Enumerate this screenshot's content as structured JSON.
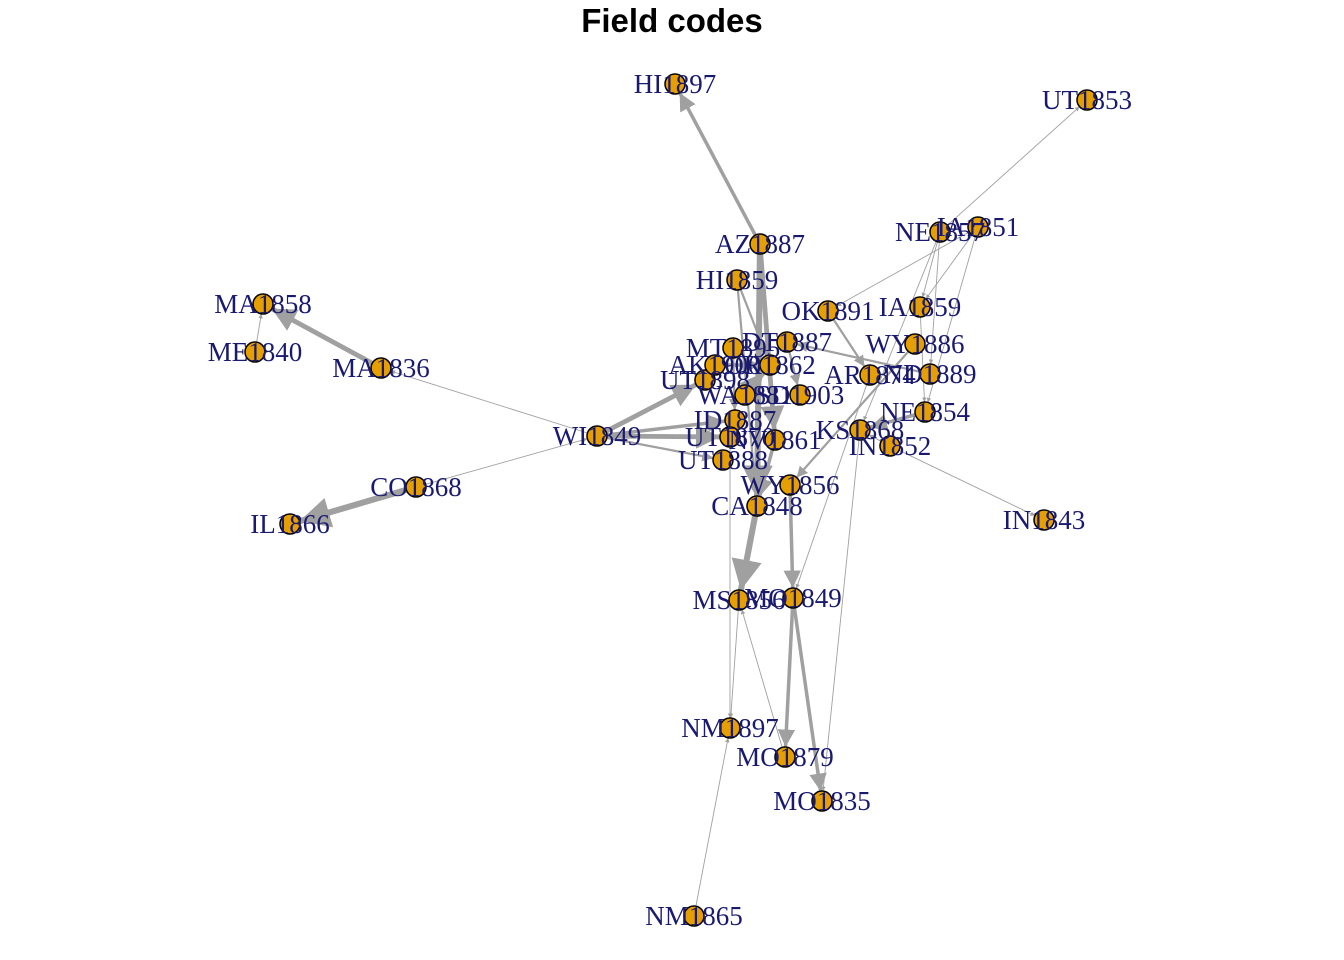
{
  "title": "Field codes",
  "colors": {
    "node_fill": "#E69F00",
    "node_stroke": "#000000",
    "edge": "#A0A0A0",
    "label": "#191970"
  },
  "nodes": [
    {
      "id": "HI1897",
      "label": "HI1897"
    },
    {
      "id": "UT1853",
      "label": "UT1853"
    },
    {
      "id": "NE1857",
      "label": "NE1857"
    },
    {
      "id": "IA1851",
      "label": "IA1851"
    },
    {
      "id": "AZ1887",
      "label": "AZ1887"
    },
    {
      "id": "HI1859",
      "label": "HI1859"
    },
    {
      "id": "MA1858",
      "label": "MA1858"
    },
    {
      "id": "OK1891",
      "label": "OK1891"
    },
    {
      "id": "IA1859",
      "label": "IA1859"
    },
    {
      "id": "ME1840",
      "label": "ME1840"
    },
    {
      "id": "MA1836",
      "label": "MA1836"
    },
    {
      "id": "WY1886",
      "label": "WY1886"
    },
    {
      "id": "DT1887",
      "label": "DT1887"
    },
    {
      "id": "MT1895",
      "label": "MT1895"
    },
    {
      "id": "ND1889",
      "label": "ND1889"
    },
    {
      "id": "WI1849",
      "label": "WI1849"
    },
    {
      "id": "NE1854",
      "label": "NE1854"
    },
    {
      "id": "IN1852",
      "label": "IN1852"
    },
    {
      "id": "CO1868",
      "label": "CO1868"
    },
    {
      "id": "IL1866",
      "label": "IL1866"
    },
    {
      "id": "WY1856",
      "label": "WY1856"
    },
    {
      "id": "CA1848",
      "label": "CA1848"
    },
    {
      "id": "IN1843",
      "label": "IN1843"
    },
    {
      "id": "MS1856",
      "label": "MS1856"
    },
    {
      "id": "MO1849",
      "label": "MO1849"
    },
    {
      "id": "NM1897",
      "label": "NM1897"
    },
    {
      "id": "MO1879",
      "label": "MO1879"
    },
    {
      "id": "MO1835",
      "label": "MO1835"
    },
    {
      "id": "NM1865",
      "label": "NM1865"
    },
    {
      "id": "UT1898",
      "label": "UT1898"
    },
    {
      "id": "AK1900",
      "label": "AK1900"
    },
    {
      "id": "WA1881",
      "label": "WA1881"
    },
    {
      "id": "ID1887",
      "label": "ID1887"
    },
    {
      "id": "UT1888",
      "label": "UT1888"
    },
    {
      "id": "UT1870",
      "label": "UT1870"
    },
    {
      "id": "AR1874",
      "label": "AR1874"
    },
    {
      "id": "KS1868",
      "label": "KS1868"
    },
    {
      "id": "OR1862",
      "label": "OR1862"
    },
    {
      "id": "NV1861",
      "label": "NV1861"
    },
    {
      "id": "SD1903",
      "label": "SD1903"
    }
  ],
  "edges": [
    {
      "from": "AZ1887",
      "to": "HI1897",
      "weight": 3
    },
    {
      "from": "NE1857",
      "to": "UT1853",
      "weight": 1
    },
    {
      "from": "MA1836",
      "to": "MA1858",
      "weight": 4
    },
    {
      "from": "ME1840",
      "to": "MA1858",
      "weight": 1
    },
    {
      "from": "WI1849",
      "to": "MA1836",
      "weight": 1
    },
    {
      "from": "CO1868",
      "to": "IL1866",
      "weight": 5
    },
    {
      "from": "CO1868",
      "to": "WI1849",
      "weight": 1
    },
    {
      "from": "WI1849",
      "to": "UT1898",
      "weight": 4
    },
    {
      "from": "WI1849",
      "to": "ID1887",
      "weight": 3
    },
    {
      "from": "WI1849",
      "to": "UT1870",
      "weight": 4
    },
    {
      "from": "WI1849",
      "to": "UT1888",
      "weight": 2
    },
    {
      "from": "AZ1887",
      "to": "CA1848",
      "weight": 5
    },
    {
      "from": "HI1859",
      "to": "CA1848",
      "weight": 2
    },
    {
      "from": "NE1857",
      "to": "IA1859",
      "weight": 1
    },
    {
      "from": "IA1851",
      "to": "IA1859",
      "weight": 1
    },
    {
      "from": "IA1851",
      "to": "OK1891",
      "weight": 1
    },
    {
      "from": "NE1857",
      "to": "ND1889",
      "weight": 1
    },
    {
      "from": "IA1851",
      "to": "NE1854",
      "weight": 1
    },
    {
      "from": "NE1857",
      "to": "KS1868",
      "weight": 1
    },
    {
      "from": "IN1852",
      "to": "IN1843",
      "weight": 1
    },
    {
      "from": "CA1848",
      "to": "MS1856",
      "weight": 5
    },
    {
      "from": "WY1856",
      "to": "MO1849",
      "weight": 3
    },
    {
      "from": "MO1849",
      "to": "MO1879",
      "weight": 3
    },
    {
      "from": "MO1849",
      "to": "MO1835",
      "weight": 3
    },
    {
      "from": "MO1879",
      "to": "MS1856",
      "weight": 1
    },
    {
      "from": "MS1856",
      "to": "NM1897",
      "weight": 1
    },
    {
      "from": "NM1865",
      "to": "NM1897",
      "weight": 1
    },
    {
      "from": "UT1870",
      "to": "NM1897",
      "weight": 1
    },
    {
      "from": "AR1874",
      "to": "MO1849",
      "weight": 1
    },
    {
      "from": "KS1868",
      "to": "MO1835",
      "weight": 1
    },
    {
      "from": "OK1891",
      "to": "AR1874",
      "weight": 2
    },
    {
      "from": "WY1886",
      "to": "WY1856",
      "weight": 2
    },
    {
      "from": "DT1887",
      "to": "SD1903",
      "weight": 2
    },
    {
      "from": "MT1895",
      "to": "ID1887",
      "weight": 2
    },
    {
      "from": "AK1900",
      "to": "OR1862",
      "weight": 3
    },
    {
      "from": "WA1881",
      "to": "OR1862",
      "weight": 4
    },
    {
      "from": "NV1861",
      "to": "CA1848",
      "weight": 3
    },
    {
      "from": "AZ1887",
      "to": "NV1861",
      "weight": 4
    },
    {
      "from": "HI1859",
      "to": "OR1862",
      "weight": 2
    },
    {
      "from": "ND1889",
      "to": "DT1887",
      "weight": 2
    },
    {
      "from": "NE1854",
      "to": "KS1868",
      "weight": 3
    },
    {
      "from": "IA1859",
      "to": "NE1854",
      "weight": 1
    },
    {
      "from": "IN1852",
      "to": "KS1868",
      "weight": 1
    }
  ]
}
